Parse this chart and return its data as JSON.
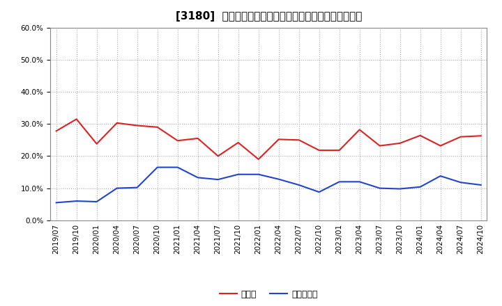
{
  "title": "[3180]  現頹金、有利子負債の総資産に対する比率の推移",
  "x_labels": [
    "2019/07",
    "2019/10",
    "2020/01",
    "2020/04",
    "2020/07",
    "2020/10",
    "2021/01",
    "2021/04",
    "2021/07",
    "2021/10",
    "2022/01",
    "2022/04",
    "2022/07",
    "2022/10",
    "2023/01",
    "2023/04",
    "2023/07",
    "2023/10",
    "2024/01",
    "2024/04",
    "2024/07",
    "2024/10"
  ],
  "cash_values": [
    0.278,
    0.315,
    0.238,
    0.303,
    0.295,
    0.29,
    0.248,
    0.255,
    0.2,
    0.242,
    0.19,
    0.252,
    0.25,
    0.218,
    0.218,
    0.282,
    0.232,
    0.24,
    0.264,
    0.232,
    0.26,
    0.263
  ],
  "debt_values": [
    0.055,
    0.06,
    0.058,
    0.1,
    0.102,
    0.165,
    0.165,
    0.133,
    0.127,
    0.143,
    0.143,
    0.128,
    0.11,
    0.088,
    0.12,
    0.12,
    0.1,
    0.098,
    0.104,
    0.138,
    0.118,
    0.11
  ],
  "cash_color": "#dd2222",
  "debt_color": "#2244cc",
  "cash_label": "現頹金",
  "debt_label": "有利子負債",
  "ylim": [
    0.0,
    0.6
  ],
  "yticks": [
    0.0,
    0.1,
    0.2,
    0.3,
    0.4,
    0.5,
    0.6
  ],
  "background_color": "#ffffff",
  "plot_bg_color": "#ffffff",
  "grid_color": "#aaaaaa",
  "title_fontsize": 11,
  "tick_fontsize": 7.5,
  "legend_fontsize": 9
}
